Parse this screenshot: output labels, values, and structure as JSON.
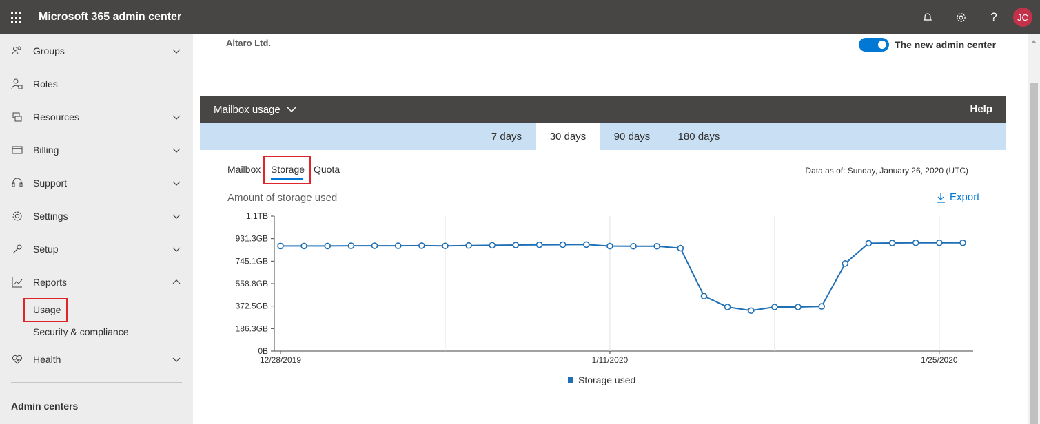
{
  "app": {
    "title": "Microsoft 365 admin center",
    "avatar_initials": "JC"
  },
  "topbar_icons": [
    "waffle-icon",
    "bell-icon",
    "gear-icon",
    "help-icon"
  ],
  "sidebar": {
    "items": [
      {
        "label": "Groups",
        "icon": "groups-icon",
        "expandable": true
      },
      {
        "label": "Roles",
        "icon": "roles-icon",
        "expandable": false
      },
      {
        "label": "Resources",
        "icon": "resources-icon",
        "expandable": true
      },
      {
        "label": "Billing",
        "icon": "billing-icon",
        "expandable": true
      },
      {
        "label": "Support",
        "icon": "support-icon",
        "expandable": true
      },
      {
        "label": "Settings",
        "icon": "settings-icon",
        "expandable": true
      },
      {
        "label": "Setup",
        "icon": "setup-icon",
        "expandable": true
      },
      {
        "label": "Reports",
        "icon": "reports-icon",
        "expandable": true,
        "expanded": true
      },
      {
        "label": "Health",
        "icon": "health-icon",
        "expandable": true
      }
    ],
    "reports_children": [
      "Usage",
      "Security & compliance"
    ],
    "admin_centers": "Admin centers"
  },
  "header": {
    "org_name": "Altaro Ltd.",
    "toggle_label": "The new admin center",
    "toggle_on": true
  },
  "report": {
    "selector_label": "Mailbox usage",
    "help_label": "Help",
    "periods": [
      "7 days",
      "30 days",
      "90 days",
      "180 days"
    ],
    "active_period": "30 days",
    "sub_tabs": [
      "Mailbox",
      "Storage",
      "Quota"
    ],
    "active_sub_tab": "Storage",
    "data_as_of": "Data as of: Sunday, January 26, 2020 (UTC)",
    "chart_title": "Amount of storage used",
    "export_label": "Export"
  },
  "colors": {
    "accent": "#0078d4",
    "series": "#1f6fb5",
    "topbar": "#474645",
    "sidebar": "#ededed",
    "period_bar": "#c9e0f4",
    "highlight": "#e0242b"
  },
  "chart_data": {
    "type": "line",
    "title": "",
    "xlabel": "",
    "ylabel": "",
    "x": [
      "2019-12-28",
      "2019-12-29",
      "2019-12-30",
      "2019-12-31",
      "2020-01-01",
      "2020-01-02",
      "2020-01-03",
      "2020-01-04",
      "2020-01-05",
      "2020-01-06",
      "2020-01-07",
      "2020-01-08",
      "2020-01-09",
      "2020-01-10",
      "2020-01-11",
      "2020-01-12",
      "2020-01-13",
      "2020-01-14",
      "2020-01-15",
      "2020-01-16",
      "2020-01-17",
      "2020-01-18",
      "2020-01-19",
      "2020-01-20",
      "2020-01-21",
      "2020-01-22",
      "2020-01-23",
      "2020-01-24",
      "2020-01-25",
      "2020-01-26"
    ],
    "x_ticks": [
      "12/28/2019",
      "1/11/2020",
      "1/25/2020"
    ],
    "y_ticks": [
      "0B",
      "186.3GB",
      "372.5GB",
      "558.8GB",
      "745.1GB",
      "931.3GB",
      "1.1TB"
    ],
    "ylim_gb": [
      0,
      1117.6
    ],
    "series": [
      {
        "name": "Storage used",
        "unit": "GB",
        "values": [
          870,
          870,
          870,
          872,
          872,
          872,
          873,
          871,
          874,
          876,
          878,
          880,
          881,
          882,
          869,
          868,
          868,
          852,
          455,
          365,
          335,
          365,
          365,
          370,
          725,
          893,
          895,
          897,
          897,
          897
        ]
      }
    ],
    "legend": "bottom-center",
    "grid": "vertical"
  }
}
